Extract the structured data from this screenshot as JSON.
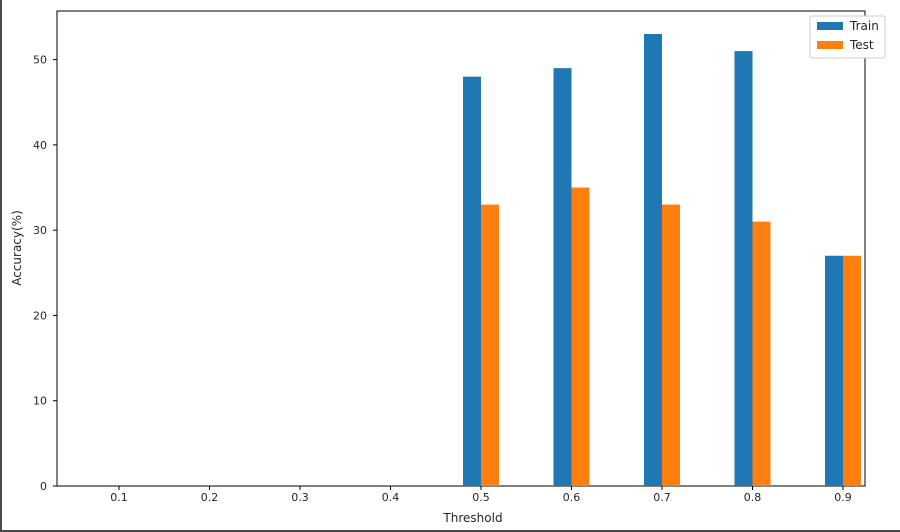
{
  "chart_data": {
    "type": "bar",
    "categories": [
      "0.1",
      "0.2",
      "0.3",
      "0.4",
      "0.5",
      "0.6",
      "0.7",
      "0.8",
      "0.9"
    ],
    "series": [
      {
        "name": "Train",
        "values": [
          0,
          0,
          0,
          0,
          48,
          49,
          53,
          51,
          27
        ],
        "color": "#1f77b4"
      },
      {
        "name": "Test",
        "values": [
          0,
          0,
          0,
          0,
          33,
          35,
          33,
          31,
          27
        ],
        "color": "#ff7f0e"
      }
    ],
    "xlabel": "Threshold",
    "ylabel": "Accuracy(%)",
    "ylim": [
      0,
      55.7
    ],
    "yticks": [
      "0",
      "10",
      "20",
      "30",
      "40",
      "50"
    ],
    "legend_position": "top-right",
    "grid": false
  }
}
